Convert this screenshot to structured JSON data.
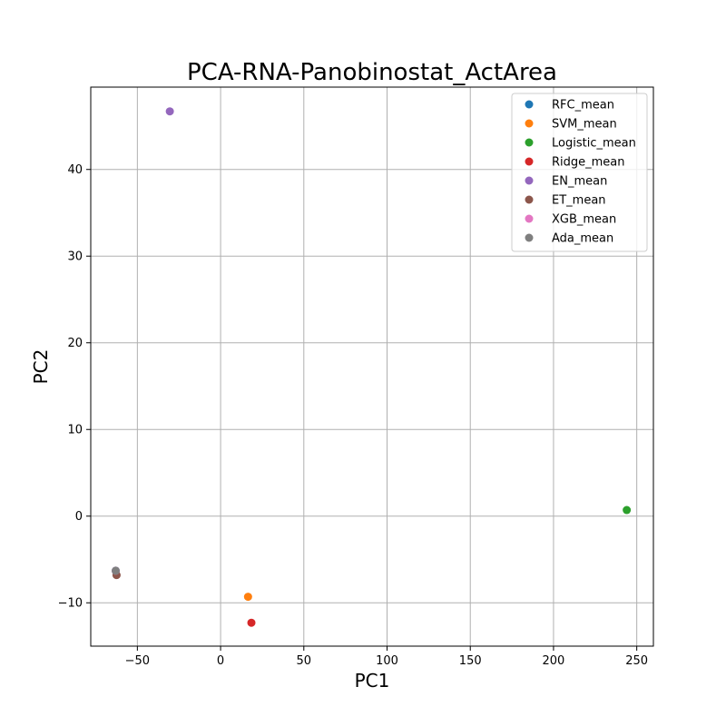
{
  "chart_data": {
    "type": "scatter",
    "title": "PCA-RNA-Panobinostat_ActArea",
    "xlabel": "PC1",
    "ylabel": "PC2",
    "xlim": [
      -78,
      260
    ],
    "ylim": [
      -15,
      49.5
    ],
    "xticks": [
      -50,
      0,
      50,
      100,
      150,
      200,
      250
    ],
    "xtick_labels": [
      "−50",
      "0",
      "50",
      "100",
      "150",
      "200",
      "250"
    ],
    "yticks": [
      -10,
      0,
      10,
      20,
      30,
      40
    ],
    "ytick_labels": [
      "−10",
      "0",
      "10",
      "20",
      "30",
      "40"
    ],
    "grid": true,
    "legend_position": "top-right",
    "series": [
      {
        "name": "RFC_mean",
        "color": "#1f77b4",
        "x": -63,
        "y": -6.3
      },
      {
        "name": "SVM_mean",
        "color": "#ff7f0e",
        "x": 16.5,
        "y": -9.3
      },
      {
        "name": "Logistic_mean",
        "color": "#2ca02c",
        "x": 244,
        "y": 0.7
      },
      {
        "name": "Ridge_mean",
        "color": "#d62728",
        "x": 18.5,
        "y": -12.3
      },
      {
        "name": "EN_mean",
        "color": "#9467bd",
        "x": -30.5,
        "y": 46.7
      },
      {
        "name": "ET_mean",
        "color": "#8c564b",
        "x": -62.5,
        "y": -6.8
      },
      {
        "name": "XGB_mean",
        "color": "#e377c2",
        "x": -63,
        "y": -6.3
      },
      {
        "name": "Ada_mean",
        "color": "#7f7f7f",
        "x": -63,
        "y": -6.3
      }
    ]
  }
}
